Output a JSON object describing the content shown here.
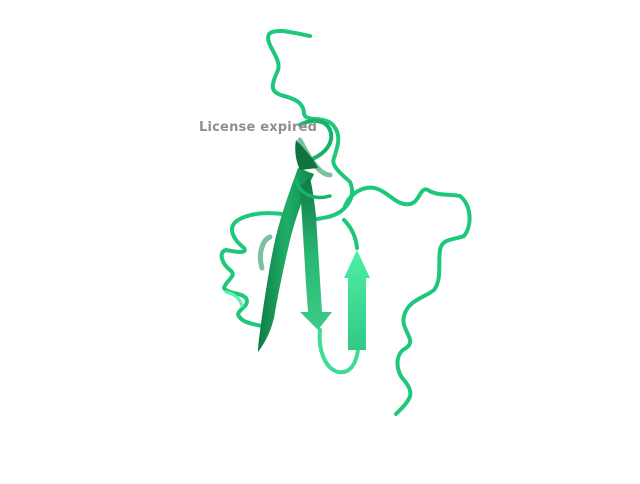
{
  "viewer": {
    "watermark_text": "License expired",
    "background_color": "#ffffff",
    "watermark_color": "#8f8f8f"
  },
  "structure": {
    "representation": "cartoon",
    "colors": {
      "coil": "#1ec87a",
      "coil_shadow": "#0e8f52",
      "sheet_light": "#3fe69a",
      "sheet_mid": "#2bb874",
      "sheet_dark": "#138a4f"
    },
    "strand_count": 3
  }
}
